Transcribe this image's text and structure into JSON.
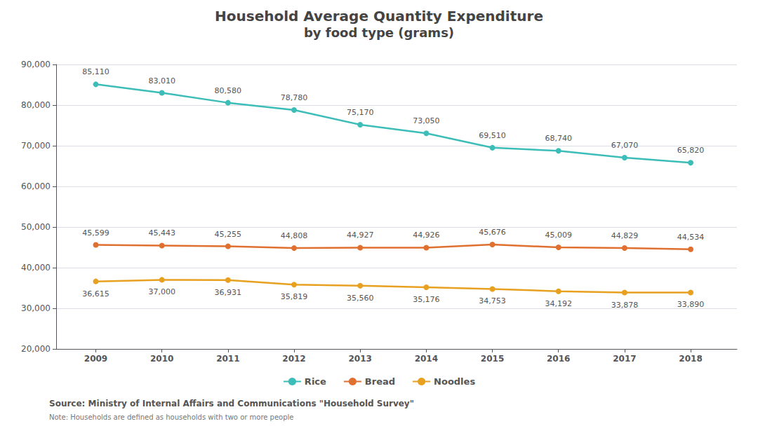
{
  "chart_data": {
    "type": "line",
    "title": "Household Average Quantity Expenditure",
    "subtitle": "by food type (grams)",
    "x": [
      2009,
      2010,
      2011,
      2012,
      2013,
      2014,
      2015,
      2016,
      2017,
      2018
    ],
    "xlim": [
      2008.4,
      2018.7
    ],
    "xticks": [
      2009,
      2010,
      2011,
      2012,
      2013,
      2014,
      2015,
      2016,
      2017,
      2018
    ],
    "ylim": [
      20000,
      90000
    ],
    "yticks": [
      {
        "value": 20000,
        "label": "20,000"
      },
      {
        "value": 30000,
        "label": "30,000"
      },
      {
        "value": 40000,
        "label": "40,000"
      },
      {
        "value": 50000,
        "label": "50,000"
      },
      {
        "value": 60000,
        "label": "60,000"
      },
      {
        "value": 70000,
        "label": "70,000"
      },
      {
        "value": 80000,
        "label": "80,000"
      },
      {
        "value": 90000,
        "label": "90,000"
      }
    ],
    "grid": true,
    "legend": "bottom",
    "data_labels": true,
    "marker": "circle",
    "series": [
      {
        "name": "Rice",
        "color": "#3dbdb8",
        "values": [
          85110,
          83010,
          80580,
          78780,
          75170,
          73050,
          69510,
          68740,
          67070,
          65820
        ],
        "value_labels": [
          "85,110",
          "83,010",
          "80,580",
          "78,780",
          "75,170",
          "73,050",
          "69,510",
          "68,740",
          "67,070",
          "65,820"
        ]
      },
      {
        "name": "Bread",
        "color": "#e07030",
        "values": [
          45599,
          45443,
          45255,
          44808,
          44927,
          44926,
          45676,
          45009,
          44829,
          44534
        ],
        "value_labels": [
          "45,599",
          "45,443",
          "45,255",
          "44,808",
          "44,927",
          "44,926",
          "45,676",
          "45,009",
          "44,829",
          "44,534"
        ]
      },
      {
        "name": "Noodles",
        "color": "#e8a020",
        "values": [
          36615,
          37000,
          36931,
          35819,
          35560,
          35176,
          34753,
          34192,
          33878,
          33890
        ],
        "value_labels": [
          "36,615",
          "37,000",
          "36,931",
          "35,819",
          "35,560",
          "35,176",
          "34,753",
          "34,192",
          "33,878",
          "33,890"
        ]
      }
    ],
    "annotations": [
      "Source: Ministry of Internal Affairs and Communications \"Household Survey\"",
      "Note: Households are defined as households with two or more people"
    ]
  }
}
